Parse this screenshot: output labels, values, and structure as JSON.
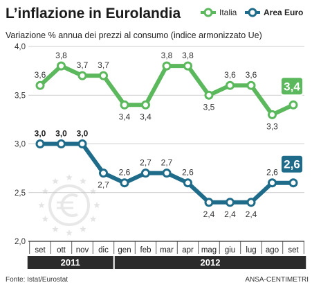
{
  "chart_data": {
    "type": "line",
    "title": "L’inflazione in Eurolandia",
    "subtitle": "Variazione % annua dei prezzi al consumo (indice armonizzato Ue)",
    "categories": [
      "set",
      "ott",
      "nov",
      "dic",
      "gen",
      "feb",
      "mar",
      "apr",
      "mag",
      "giu",
      "lug",
      "ago",
      "set"
    ],
    "years": [
      {
        "label": "2011",
        "from": 0,
        "to": 3
      },
      {
        "label": "2012",
        "from": 4,
        "to": 12
      }
    ],
    "series": [
      {
        "name": "Italia",
        "color": "#5cb85c",
        "values": [
          3.6,
          3.8,
          3.7,
          3.7,
          3.4,
          3.4,
          3.8,
          3.8,
          3.5,
          3.6,
          3.6,
          3.3,
          3.4
        ],
        "labels": [
          "3,6",
          "3,8",
          "3,7",
          "3,7",
          "3,4",
          "3,4",
          "3,8",
          "3,8",
          "3,5",
          "3,6",
          "3,6",
          "3,3",
          "3,4"
        ],
        "label_position": [
          "above",
          "above",
          "above",
          "above",
          "below",
          "below",
          "above",
          "above",
          "below",
          "above",
          "above",
          "below",
          "badge"
        ]
      },
      {
        "name": "Area Euro",
        "color": "#1e6b8a",
        "values": [
          3.0,
          3.0,
          3.0,
          2.7,
          2.6,
          2.7,
          2.7,
          2.6,
          2.4,
          2.4,
          2.4,
          2.6,
          2.6
        ],
        "labels": [
          "3,0",
          "3,0",
          "3,0",
          "2,7",
          "2,6",
          "2,7",
          "2,7",
          "2,6",
          "2,4",
          "2,4",
          "2,4",
          "2,6",
          "2,6"
        ],
        "label_position": [
          "above",
          "above",
          "above",
          "below",
          "above",
          "above",
          "above",
          "above",
          "below",
          "below",
          "below",
          "above",
          "badge"
        ]
      }
    ],
    "y_ticks": [
      {
        "value": 2.0,
        "label": "2,0"
      },
      {
        "value": 2.5,
        "label": "2,5"
      },
      {
        "value": 3.0,
        "label": "3,0"
      },
      {
        "value": 3.5,
        "label": "3,5"
      },
      {
        "value": 4.0,
        "label": "4,0"
      }
    ],
    "ylim": [
      2.0,
      4.0
    ],
    "grid": true,
    "legend_placement": "top-right",
    "source": "Fonte: Istat/Eurostat",
    "credit": "ANSA-CENTIMETRI"
  }
}
